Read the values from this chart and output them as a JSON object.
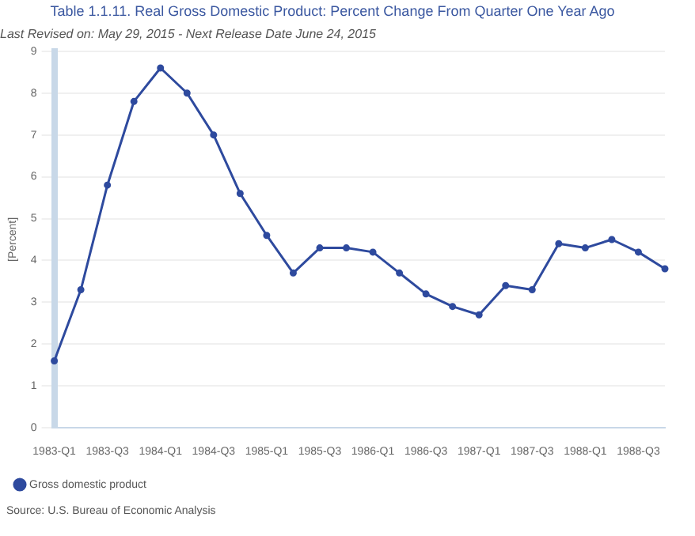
{
  "chart_data": {
    "type": "line",
    "title": "Table 1.1.11. Real Gross Domestic Product: Percent Change From Quarter One Year Ago",
    "subtitle": "Last Revised on: May 29, 2015 - Next Release Date June 24, 2015",
    "ylabel": "[Percent]",
    "annotations": [
      "Source: U.S. Bureau of Economic Analysis"
    ],
    "categories": [
      "1983-Q1",
      null,
      "1983-Q3",
      null,
      "1984-Q1",
      null,
      "1984-Q3",
      null,
      "1985-Q1",
      null,
      "1985-Q3",
      null,
      "1986-Q1",
      null,
      "1986-Q3",
      null,
      "1987-Q1",
      null,
      "1987-Q3",
      null,
      "1988-Q1",
      null,
      "1988-Q3",
      null
    ],
    "series": [
      {
        "name": "Gross domestic product",
        "color": "#2e4a9e",
        "values": [
          1.6,
          3.3,
          5.8,
          7.8,
          8.6,
          8.0,
          7.0,
          5.6,
          4.6,
          3.7,
          4.3,
          4.3,
          4.2,
          3.7,
          3.2,
          2.9,
          2.7,
          3.4,
          3.3,
          4.4,
          4.3,
          4.5,
          4.2,
          3.8
        ]
      }
    ],
    "ylim": [
      0,
      9
    ],
    "yticks": [
      0,
      1,
      2,
      3,
      4,
      5,
      6,
      7,
      8,
      9
    ],
    "grid": "y",
    "legend": "bottom left",
    "marker": "circle",
    "line_style": "solid"
  }
}
